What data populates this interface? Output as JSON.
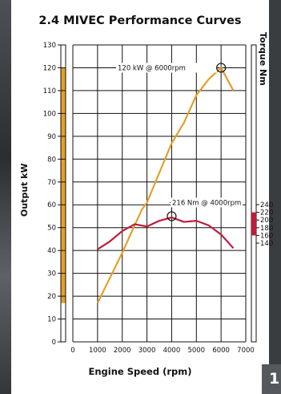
{
  "page_number": "1",
  "colors": {
    "power": "#e3a028",
    "torque": "#be1c3a",
    "grid": "#111111",
    "background": "#ffffff"
  },
  "chart_data": {
    "type": "line",
    "title": "2.4 MIVEC Performance Curves",
    "xlabel": "Engine Speed (rpm)",
    "ylabel": "Output kW",
    "ylabel_right": "Torque Nm",
    "x_ticks": [
      0,
      1000,
      2000,
      3000,
      4000,
      5000,
      6000,
      7000
    ],
    "y_ticks": [
      0,
      10,
      20,
      30,
      40,
      50,
      60,
      70,
      80,
      90,
      100,
      110,
      120,
      130
    ],
    "right_ticks": [
      140,
      160,
      180,
      200,
      220,
      240
    ],
    "xlim": [
      0,
      7000
    ],
    "ylim": [
      0,
      130
    ],
    "grid": true,
    "series": [
      {
        "axis": "left",
        "color": "#e3a028",
        "x": [
          1000,
          1500,
          2000,
          2500,
          2800,
          3000,
          3500,
          4000,
          4500,
          5000,
          5500,
          6000,
          6500
        ],
        "values": [
          17,
          28,
          39,
          51,
          58,
          61,
          74,
          87,
          96,
          108,
          115,
          120,
          110
        ]
      },
      {
        "axis": "left",
        "color": "#be1c3a",
        "x": [
          1000,
          1500,
          2000,
          2500,
          3000,
          3500,
          4000,
          4500,
          5000,
          5500,
          6000,
          6500
        ],
        "values": [
          40.5,
          44,
          48.5,
          51.5,
          50.5,
          53,
          54.5,
          52.5,
          53,
          51,
          47,
          41
        ]
      }
    ],
    "annotations": [
      {
        "text": "120 kW @ 6000rpm",
        "x": 6000,
        "y": 120
      },
      {
        "text": "216 Nm @ 4000rpm",
        "x": 4000,
        "y": 55
      }
    ]
  }
}
